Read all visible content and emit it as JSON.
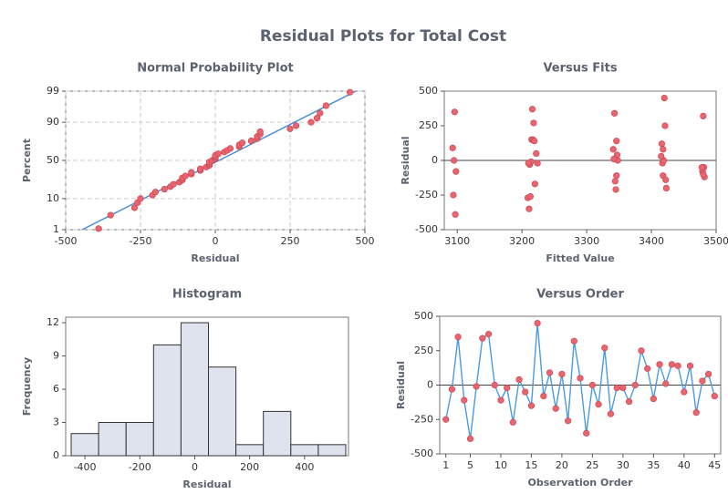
{
  "title": "Residual Plots for Total Cost",
  "chart_data": [
    {
      "type": "probability",
      "title": "Normal Probability Plot",
      "xlabel": "Residual",
      "ylabel": "Percent",
      "x": [
        -390,
        -350,
        -270,
        -260,
        -250,
        -210,
        -200,
        -170,
        -150,
        -140,
        -120,
        -110,
        -110,
        -100,
        -80,
        -80,
        -50,
        -50,
        -30,
        -20,
        -20,
        -20,
        -10,
        0,
        0,
        0,
        10,
        30,
        40,
        50,
        80,
        80,
        90,
        120,
        140,
        140,
        150,
        150,
        250,
        270,
        320,
        340,
        350,
        370,
        450
      ],
      "values": [
        1.1,
        3.3,
        5.6,
        7.8,
        10.0,
        12.2,
        14.4,
        16.7,
        18.9,
        21.1,
        23.3,
        25.6,
        27.8,
        30.0,
        32.2,
        34.4,
        36.7,
        38.9,
        41.1,
        43.3,
        45.6,
        47.8,
        50.0,
        52.2,
        54.4,
        56.7,
        58.9,
        61.1,
        63.3,
        65.6,
        67.8,
        70.0,
        72.2,
        74.4,
        76.7,
        78.9,
        81.1,
        83.3,
        85.6,
        87.8,
        90.0,
        92.2,
        94.4,
        96.7,
        98.9
      ],
      "fit_line": {
        "x": [
          -445,
          470
        ],
        "y": [
          1,
          99
        ],
        "color": "#4a8fd8"
      },
      "color": "#e8656f",
      "yscale": "probability",
      "grid": true,
      "xlim": [
        -500,
        500
      ],
      "xticks": [
        -500,
        -250,
        0,
        250,
        500
      ],
      "ylim": [
        1,
        99
      ],
      "yticks": [
        1,
        10,
        50,
        90,
        99
      ]
    },
    {
      "type": "scatter",
      "title": "Versus Fits",
      "xlabel": "Fitted Value",
      "ylabel": "Residual",
      "x": [
        3094,
        3212,
        3096,
        3418,
        3097,
        3214,
        3343,
        3216,
        3095,
        3346,
        3210,
        3209,
        3347,
        3481,
        3344,
        3420,
        3479,
        3093,
        3220,
        3341,
        3213,
        3480,
        3222,
        3211,
        3348,
        3422,
        3218,
        3345,
        3417,
        3224,
        3482,
        3419,
        3421,
        3416,
        3480,
        3215,
        3342,
        3217,
        3219,
        3478,
        3346,
        3423,
        3415,
        3418,
        3098
      ],
      "values": [
        -250,
        -30,
        350,
        -110,
        -390,
        -10,
        340,
        370,
        0,
        -110,
        -20,
        -270,
        40,
        -50,
        -150,
        450,
        -80,
        90,
        -170,
        80,
        -260,
        320,
        50,
        -350,
        0,
        -140,
        270,
        -210,
        -20,
        -20,
        -120,
        0,
        250,
        120,
        -100,
        150,
        10,
        150,
        140,
        -50,
        140,
        -200,
        30,
        80,
        -80
      ],
      "color": "#e8656f",
      "reference_line": 0,
      "grid": false,
      "xlim": [
        3080,
        3500
      ],
      "xticks": [
        3100,
        3200,
        3300,
        3400,
        3500
      ],
      "ylim": [
        -500,
        500
      ],
      "yticks": [
        -500,
        -250,
        0,
        250,
        500
      ]
    },
    {
      "type": "histogram",
      "title": "Histogram",
      "xlabel": "Residual",
      "ylabel": "Frequency",
      "bins": [
        -450,
        -350,
        -250,
        -150,
        -50,
        50,
        150,
        250,
        350,
        450,
        550
      ],
      "values": [
        2,
        3,
        3,
        10,
        12,
        8,
        1,
        4,
        1,
        1
      ],
      "color": "#dfe3ee",
      "grid": false,
      "xlim": [
        -470,
        560
      ],
      "xticks": [
        -400,
        -200,
        0,
        200,
        400
      ],
      "ylim": [
        0,
        12.5
      ],
      "yticks": [
        0,
        3,
        6,
        9,
        12
      ]
    },
    {
      "type": "line",
      "title": "Versus Order",
      "xlabel": "Observation Order",
      "ylabel": "Residual",
      "x": [
        1,
        2,
        3,
        4,
        5,
        6,
        7,
        8,
        9,
        10,
        11,
        12,
        13,
        14,
        15,
        16,
        17,
        18,
        19,
        20,
        21,
        22,
        23,
        24,
        25,
        26,
        27,
        28,
        29,
        30,
        31,
        32,
        33,
        34,
        35,
        36,
        37,
        38,
        39,
        40,
        41,
        42,
        43,
        44,
        45
      ],
      "values": [
        -250,
        -30,
        350,
        -110,
        -390,
        -10,
        340,
        370,
        0,
        -110,
        -20,
        -270,
        40,
        -50,
        -150,
        450,
        -80,
        90,
        -170,
        80,
        -260,
        320,
        50,
        -350,
        0,
        -140,
        270,
        -210,
        -20,
        -20,
        -120,
        0,
        250,
        120,
        -100,
        150,
        10,
        150,
        140,
        -50,
        140,
        -200,
        30,
        80,
        -80
      ],
      "color": "#e8656f",
      "line_color": "#4a9be0",
      "reference_line": 0,
      "grid": false,
      "xlim": [
        0,
        46
      ],
      "xticks": [
        1,
        5,
        10,
        15,
        20,
        25,
        30,
        35,
        40,
        45
      ],
      "ylim": [
        -500,
        500
      ],
      "yticks": [
        -500,
        -250,
        0,
        250,
        500
      ]
    }
  ]
}
